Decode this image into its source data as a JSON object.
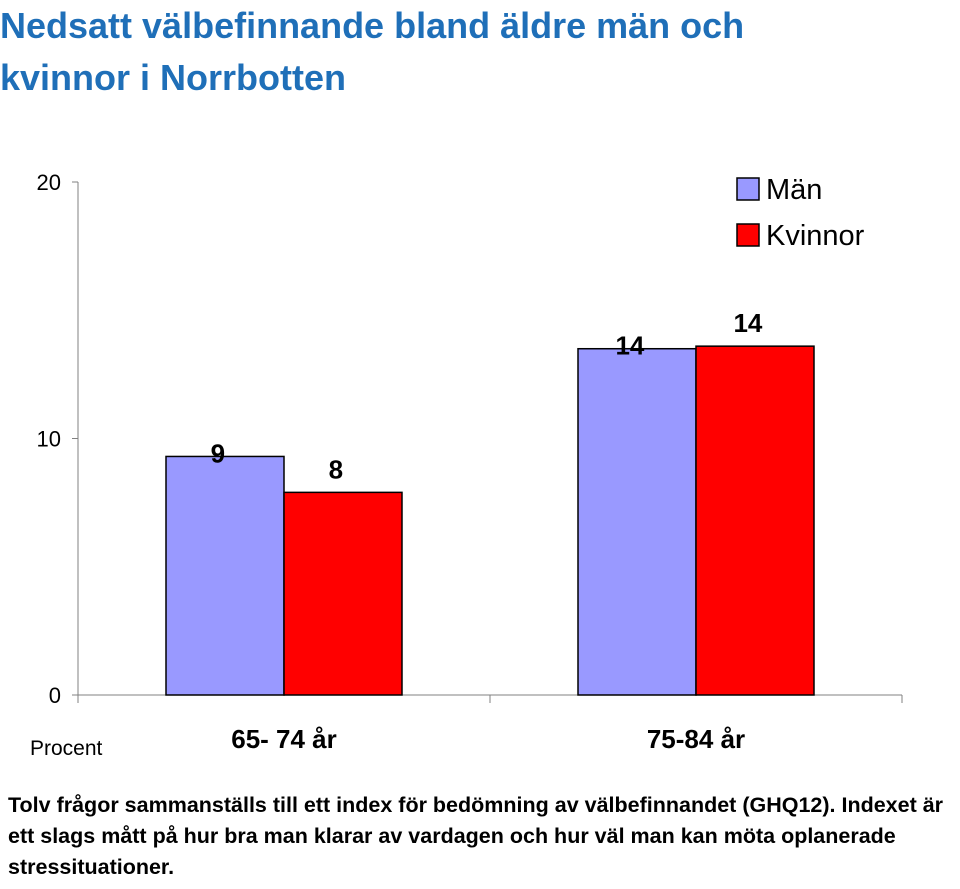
{
  "title_lines": [
    "Nedsatt välbefinnande bland äldre män och",
    "kvinnor i Norrbotten"
  ],
  "chart_data": {
    "type": "bar",
    "categories": [
      "65- 74 år",
      "75-84 år"
    ],
    "series": [
      {
        "name": "Män",
        "values": [
          9.3,
          13.5
        ],
        "labels": [
          "9",
          "14"
        ],
        "color": "#9999ff"
      },
      {
        "name": "Kvinnor",
        "values": [
          7.9,
          13.6
        ],
        "labels": [
          "8",
          "14"
        ],
        "color": "#ff0000"
      }
    ],
    "ylim": [
      0,
      20
    ],
    "yticks": [
      0,
      10,
      20
    ],
    "ylabel": "Procent",
    "legend_position": "top-right"
  },
  "caption": "Tolv frågor sammanställs till ett index för bedömning av välbefinnandet (GHQ12). Indexet är ett slags mått på hur bra man klarar av vardagen och hur väl man kan möta oplanerade stressituationer."
}
